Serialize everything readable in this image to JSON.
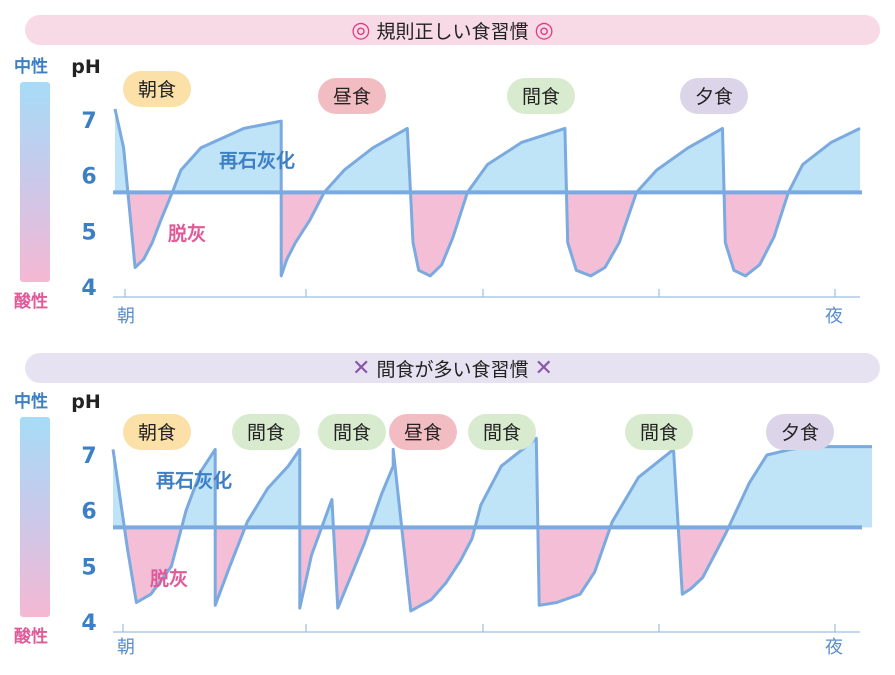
{
  "chart_data": [
    {
      "type": "line",
      "title": "規則正しい食習慣",
      "title_symbol": "◎",
      "ylabel": "pH",
      "scale_top_label": "中性",
      "scale_bottom_label": "酸性",
      "yticks": [
        4,
        5,
        6,
        7
      ],
      "ylim": [
        4,
        7.4
      ],
      "x_start_label": "朝",
      "x_end_label": "夜",
      "threshold": 5.7,
      "threshold_colors": {
        "above": "#bfe3f7",
        "below": "#f4bfd6",
        "line": "#7aaadf"
      },
      "annotations": {
        "above": "再石灰化",
        "below": "脱灰"
      },
      "meals": [
        {
          "label": "朝食",
          "color": "#fbe0a8"
        },
        {
          "label": "昼食",
          "color": "#f2bdc2"
        },
        {
          "label": "間食",
          "color": "#d8ebcf"
        },
        {
          "label": "夕食",
          "color": "#dcd5ea"
        }
      ],
      "x": [
        0,
        0.3,
        0.7,
        1.0,
        1.3,
        1.6,
        2.0,
        2.3,
        3.0,
        4.5,
        5.8,
        5.8,
        6.0,
        6.3,
        6.8,
        7.3,
        8.0,
        9.0,
        10.2,
        10.2,
        10.4,
        10.6,
        11.0,
        11.4,
        11.8,
        12.3,
        13.0,
        14.2,
        15.7,
        15.7,
        15.8,
        16.1,
        16.6,
        17.1,
        17.6,
        18.2,
        18.9,
        20.0,
        21.2,
        21.2,
        21.3,
        21.6,
        22.0,
        22.5,
        23.0,
        23.5,
        24.0,
        25.0,
        26.0
      ],
      "values": [
        7.2,
        6.5,
        4.35,
        4.5,
        4.8,
        5.2,
        5.7,
        6.1,
        6.5,
        6.85,
        6.98,
        4.2,
        4.5,
        4.8,
        5.2,
        5.7,
        6.1,
        6.5,
        6.85,
        6.85,
        4.8,
        4.3,
        4.2,
        4.4,
        4.9,
        5.7,
        6.2,
        6.6,
        6.85,
        6.85,
        4.8,
        4.3,
        4.2,
        4.35,
        4.8,
        5.7,
        6.1,
        6.5,
        6.85,
        6.85,
        4.8,
        4.3,
        4.2,
        4.4,
        4.9,
        5.7,
        6.2,
        6.6,
        6.85
      ]
    },
    {
      "type": "line",
      "title": "間食が多い食習慣",
      "title_symbol": "✕",
      "ylabel": "pH",
      "scale_top_label": "中性",
      "scale_bottom_label": "酸性",
      "yticks": [
        4,
        5,
        6,
        7
      ],
      "ylim": [
        4,
        7.4
      ],
      "x_start_label": "朝",
      "x_end_label": "夜",
      "threshold": 5.7,
      "threshold_colors": {
        "above": "#bfe3f7",
        "below": "#f4bfd6",
        "line": "#7aaadf"
      },
      "annotations": {
        "above": "再石灰化",
        "below": "脱灰"
      },
      "meals": [
        {
          "label": "朝食",
          "color": "#fbe0a8"
        },
        {
          "label": "間食",
          "color": "#d8ebcf"
        },
        {
          "label": "間食",
          "color": "#d8ebcf"
        },
        {
          "label": "昼食",
          "color": "#f2bdc2"
        },
        {
          "label": "間食",
          "color": "#d8ebcf"
        },
        {
          "label": "間食",
          "color": "#d8ebcf"
        },
        {
          "label": "夕食",
          "color": "#dcd5ea"
        }
      ],
      "x": [
        0,
        0.5,
        0.8,
        1.3,
        2.0,
        2.5,
        3.0,
        3.5,
        3.5,
        4.0,
        4.6,
        5.3,
        6.0,
        6.4,
        6.4,
        6.8,
        7.5,
        7.7,
        7.7,
        8.6,
        9.2,
        9.6,
        9.6,
        10.2,
        10.9,
        11.4,
        11.9,
        12.3,
        12.6,
        13.3,
        14.5,
        14.5,
        14.6,
        15.2,
        16.0,
        16.5,
        17.1,
        18.0,
        19.2,
        19.2,
        19.5,
        19.8,
        20.2,
        21.0,
        21.8,
        22.4,
        23.2,
        23.5,
        24.2,
        25.0,
        25.6,
        26.0
      ],
      "values": [
        7.1,
        5.3,
        4.35,
        4.5,
        5.0,
        6.0,
        6.7,
        7.1,
        4.3,
        5.0,
        5.8,
        6.4,
        6.8,
        7.1,
        4.25,
        5.2,
        6.2,
        4.25,
        4.25,
        5.4,
        6.3,
        6.8,
        7.1,
        4.2,
        4.4,
        4.7,
        5.1,
        5.5,
        6.1,
        6.8,
        7.3,
        7.3,
        4.3,
        4.35,
        4.5,
        4.9,
        5.8,
        6.6,
        7.1,
        7.1,
        4.5,
        4.6,
        4.8,
        5.6,
        6.5,
        7.0,
        7.1,
        7.12,
        7.15,
        7.15,
        7.15,
        7.15
      ]
    }
  ]
}
